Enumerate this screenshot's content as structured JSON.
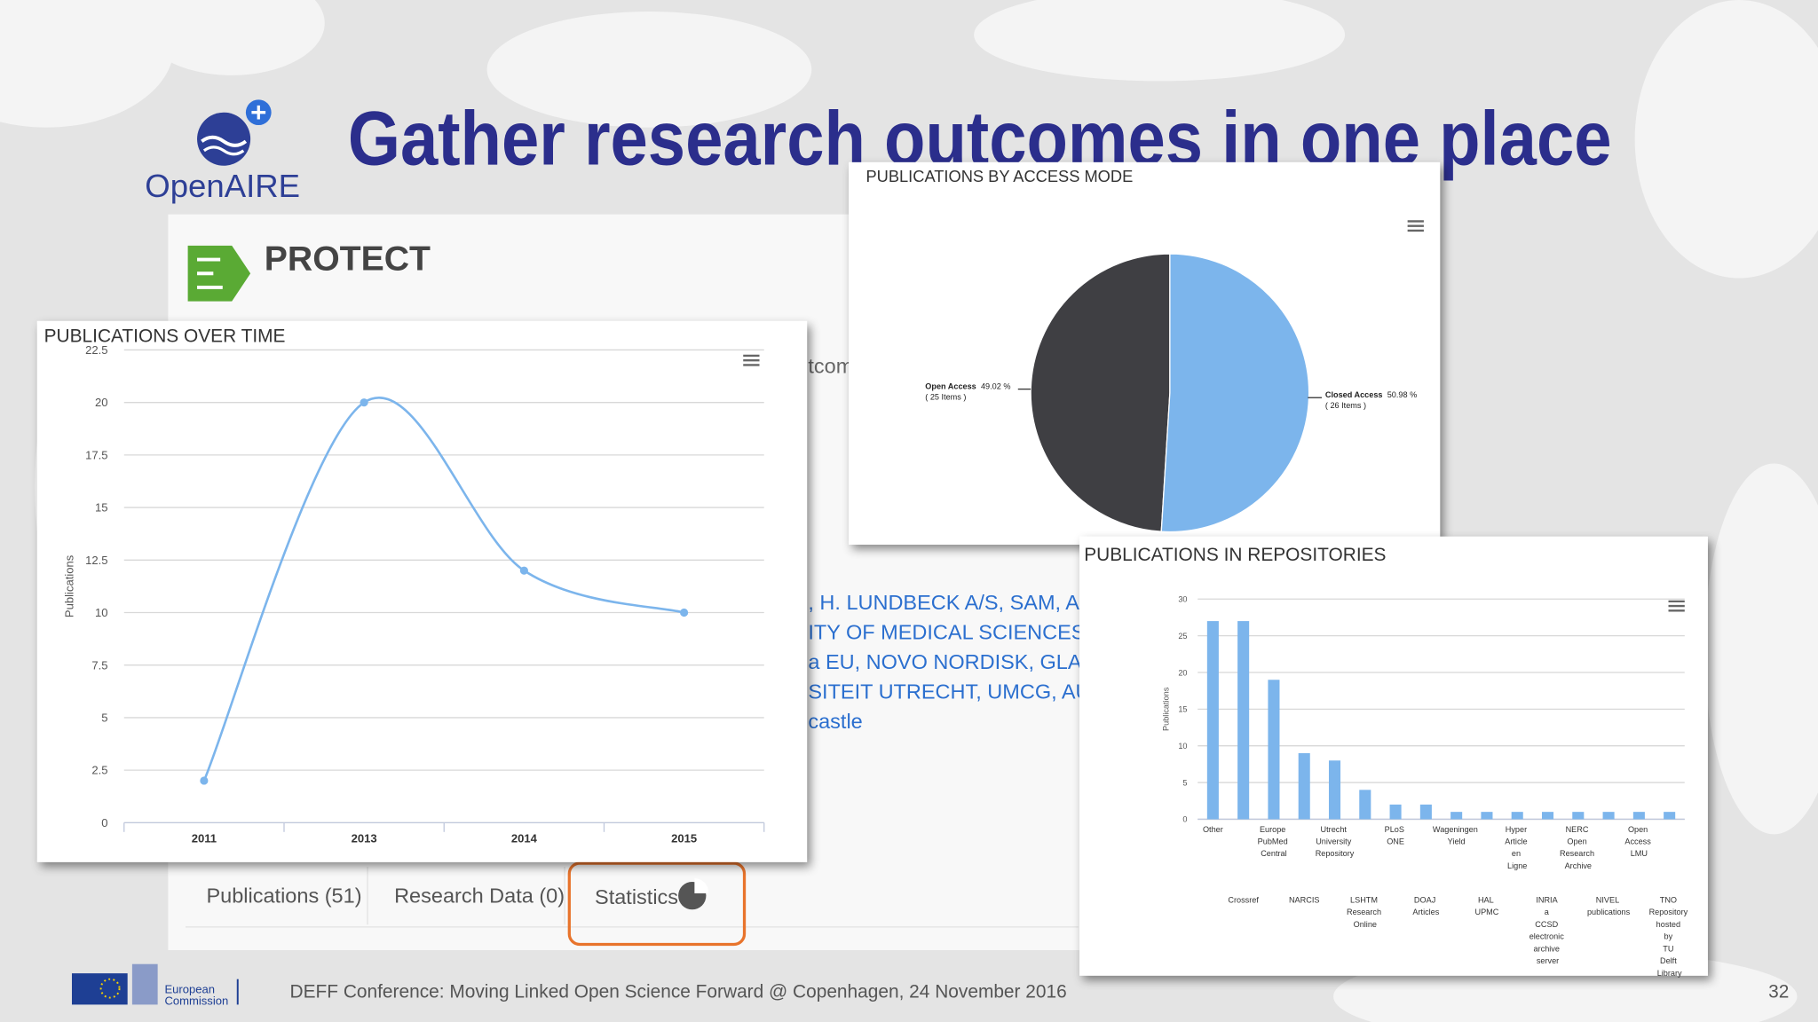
{
  "header": {
    "title": "Gather research outcomes in one place"
  },
  "logo": {
    "name": "OpenAIRE"
  },
  "project": {
    "name": "PROTECT"
  },
  "background_text": {
    "fragment": "tcom",
    "lines": [
      ", H. LUNDBECK A/S, SAM, Am",
      "ITY OF MEDICAL SCIENCES, B",
      "a EU, NOVO NORDISK, GLAXC",
      "SITEIT UTRECHT, UMCG, AU, I",
      "castle"
    ]
  },
  "tabs": [
    "Publications (51)",
    "Research Data (0)",
    "Statistics"
  ],
  "footer": {
    "organization": [
      "European",
      "Commission"
    ],
    "caption": "DEFF Conference: Moving Linked Open Science Forward @ Copenhagen, 24 November 2016",
    "page": 32
  },
  "chart_data": [
    {
      "type": "line",
      "title": "PUBLICATIONS OVER TIME",
      "y_label": "Publications",
      "categories": [
        "2011",
        "2013",
        "2014",
        "2015"
      ],
      "values": [
        2,
        20,
        12,
        10
      ],
      "color": "#7cb5ec",
      "ylim": [
        0,
        22.5
      ],
      "yticks": [
        0,
        2.5,
        5,
        7.5,
        10,
        12.5,
        15,
        17.5,
        20,
        22.5
      ],
      "grid": true
    },
    {
      "type": "pie",
      "title": "PUBLICATIONS BY ACCESS MODE",
      "categories": [
        "Open Access",
        "Closed Access"
      ],
      "values": [
        49.02,
        50.98
      ],
      "value_labels": [
        "49.02 %",
        "50.98 %"
      ],
      "item_labels": [
        "( 25 Items )",
        "( 26 Items )"
      ],
      "colors": [
        "#3f3f43",
        "#7cb5ec"
      ]
    },
    {
      "type": "bar",
      "title": "PUBLICATIONS IN REPOSITORIES",
      "y_label": "Publications",
      "categories": [
        "Other",
        "Crossref",
        "Europe PubMed Central",
        "NARCIS",
        "Utrecht University Repository",
        "LSHTM Research Online",
        "PLoS ONE",
        "DOAJ Articles",
        "Wageningen Yield",
        "HAL UPMC",
        "Hyper Article en Ligne",
        "INRIA a CCSD electronic archive server",
        "NERC Open Research Archive",
        "NIVEL publications",
        "Open Access LMU",
        "TNO Repository hosted by TU Delft Library"
      ],
      "values": [
        27,
        27,
        19,
        9,
        8,
        4,
        2,
        2,
        1,
        1,
        1,
        1,
        1,
        1,
        1,
        1
      ],
      "color": "#7cb5ec",
      "ylim": [
        0,
        30
      ],
      "yticks": [
        0,
        5,
        10,
        15,
        20,
        25,
        30
      ],
      "grid": true
    }
  ]
}
